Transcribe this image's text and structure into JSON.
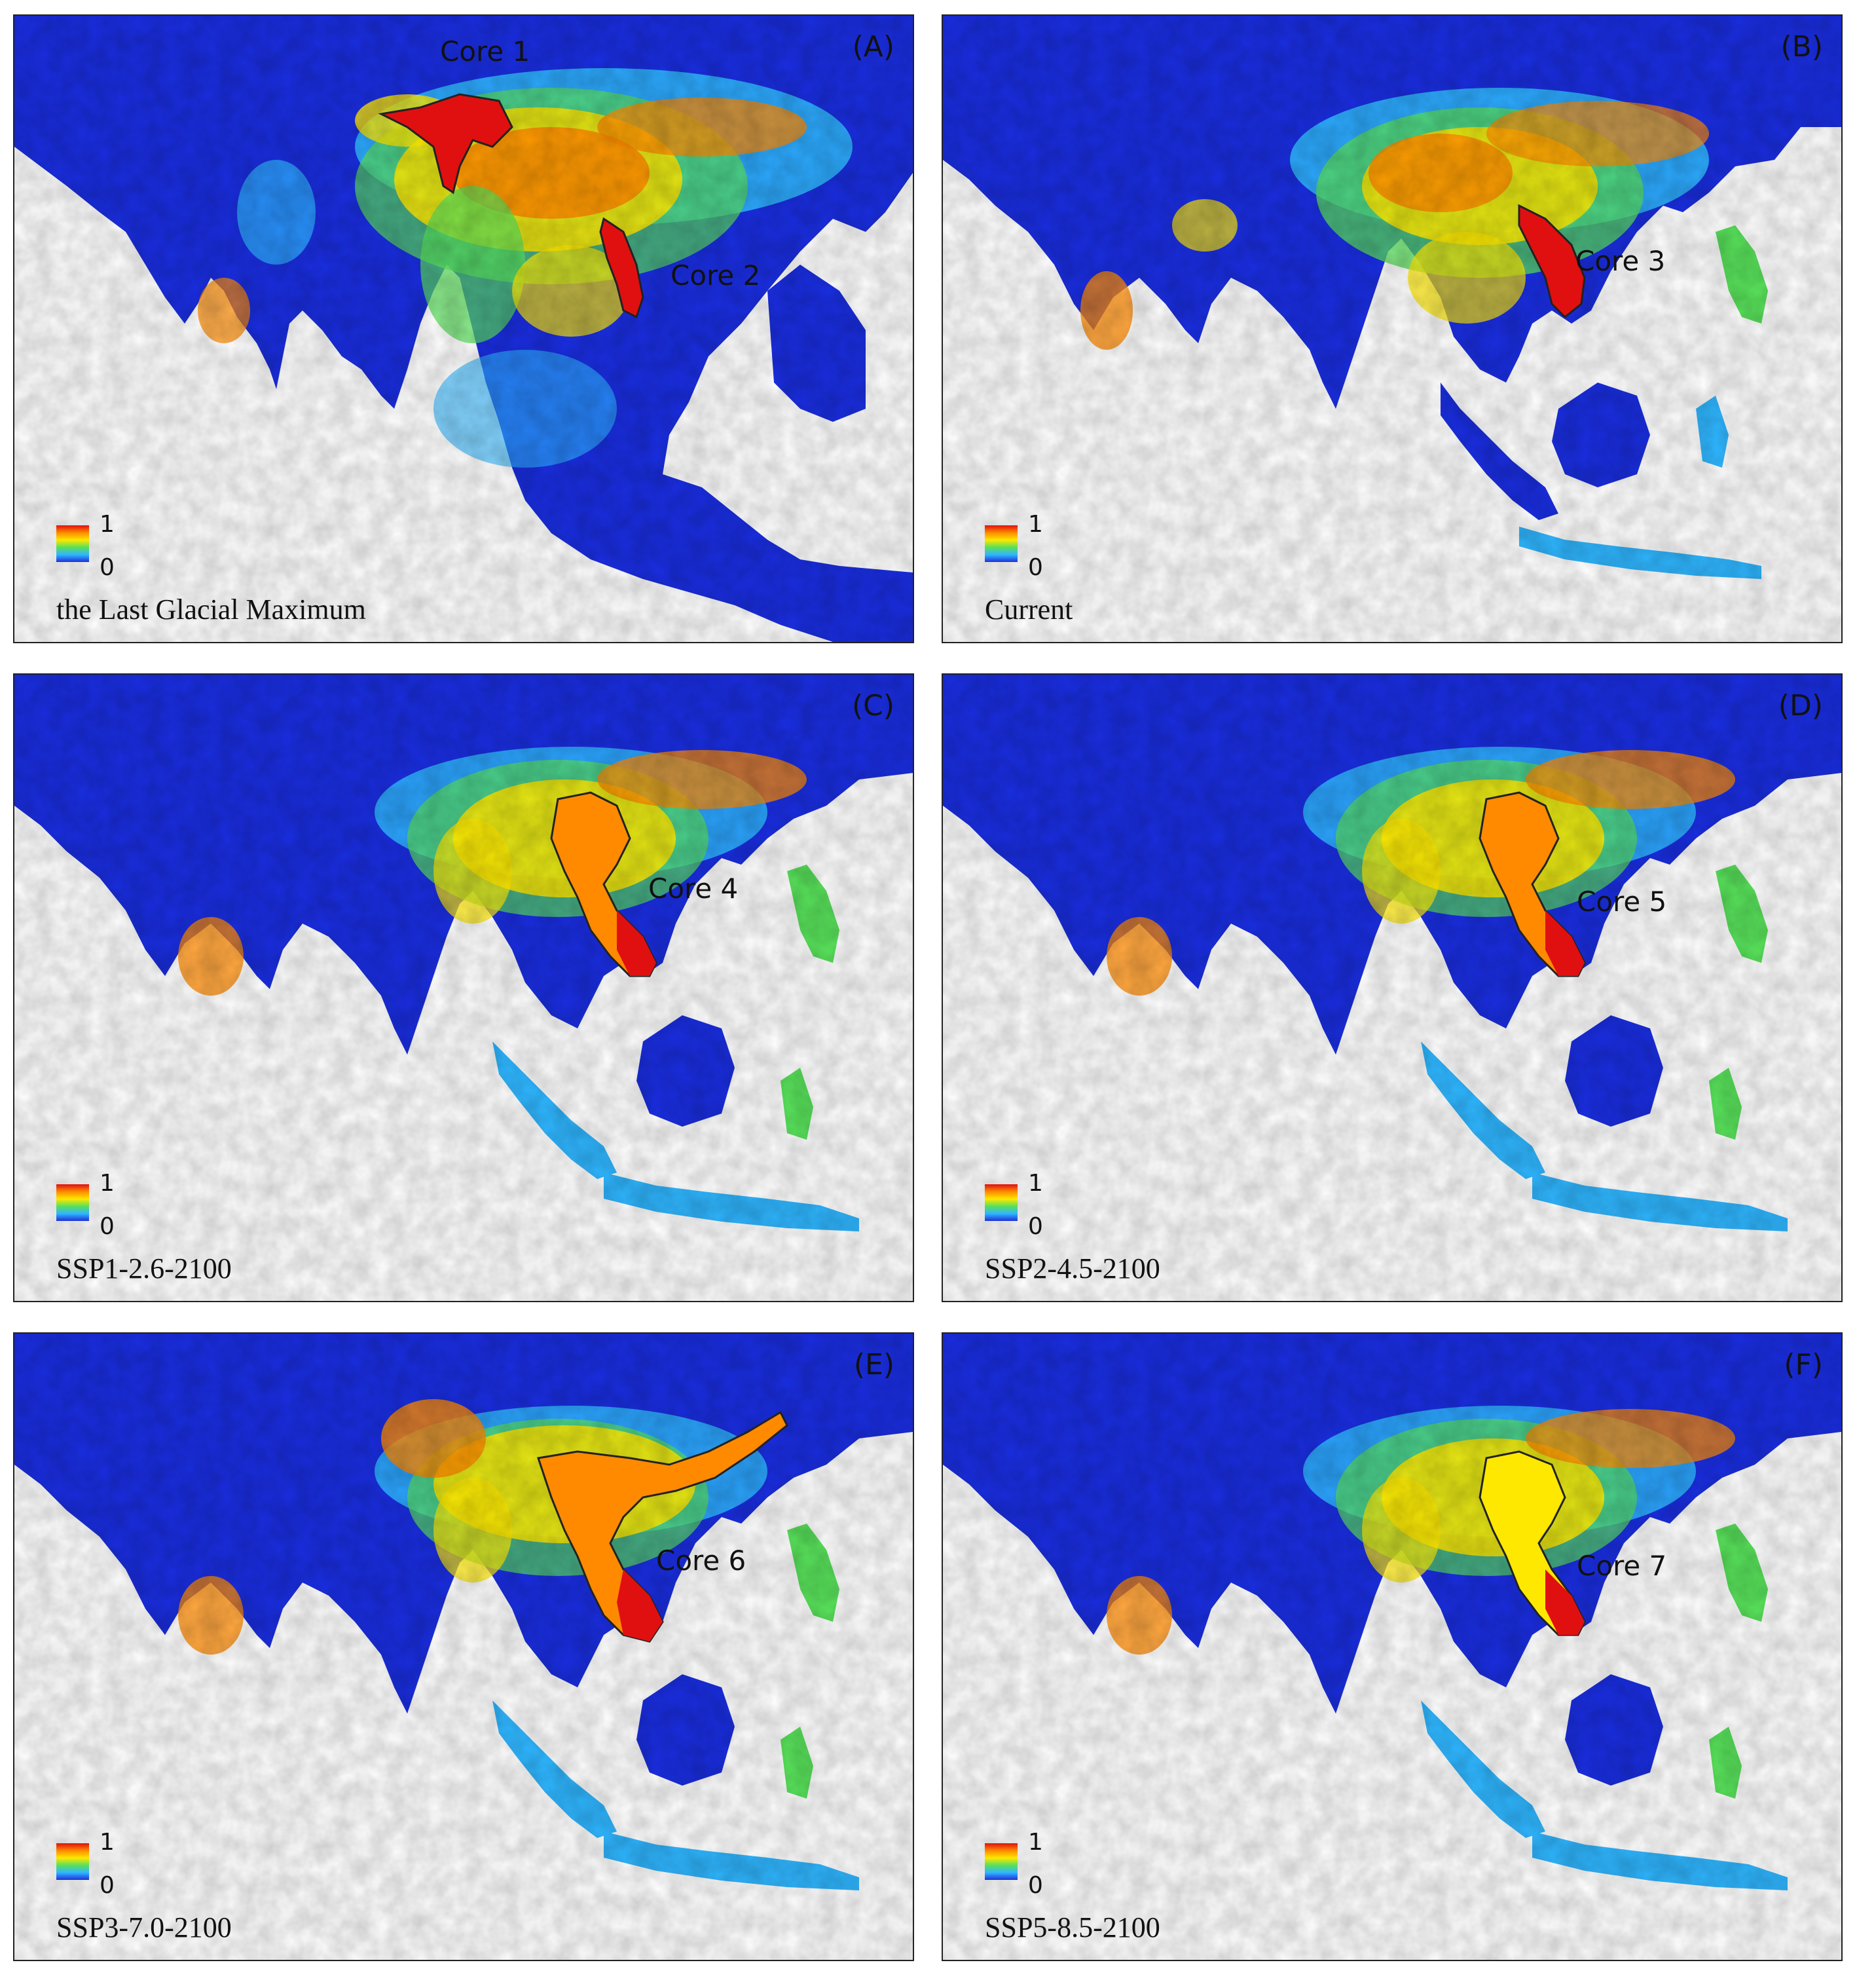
{
  "legend": {
    "max": "1",
    "min": "0"
  },
  "panels": [
    {
      "letter": "(A)",
      "scenario": "the Last Glacial Maximum",
      "cores": [
        "Core 1",
        "Core 2"
      ]
    },
    {
      "letter": "(B)",
      "scenario": "Current",
      "cores": [
        "Core 3"
      ]
    },
    {
      "letter": "(C)",
      "scenario": "SSP1-2.6-2100",
      "cores": [
        "Core 4"
      ]
    },
    {
      "letter": "(D)",
      "scenario": "SSP2-4.5-2100",
      "cores": [
        "Core 5"
      ]
    },
    {
      "letter": "(E)",
      "scenario": "SSP3-7.0-2100",
      "cores": [
        "Core 6"
      ]
    },
    {
      "letter": "(F)",
      "scenario": "SSP5-8.5-2100",
      "cores": [
        "Core 7"
      ]
    }
  ],
  "colors": {
    "low": "#1a2ee0",
    "mid_low": "#2fb6ff",
    "mid": "#ffe800",
    "mid_high": "#ff8a00",
    "high": "#e01010",
    "outline": "#222222"
  }
}
